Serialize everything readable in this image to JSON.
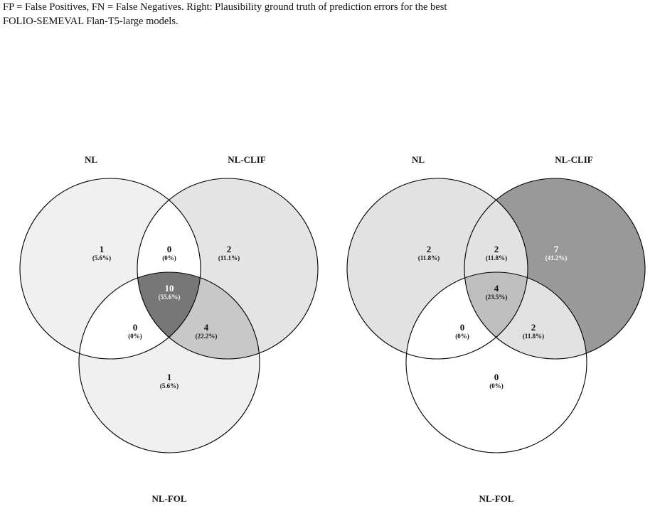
{
  "caption": [
    "FP = False Positives, FN = False Negatives.  Right: Plausibility ground truth of prediction errors for the best",
    "FOLIO-SEMEVAL Flan-T5-large models."
  ],
  "venns": [
    {
      "sets": [
        "NL",
        "NL-CLIF",
        "NL-FOL"
      ],
      "regions": [
        {
          "count": 1,
          "percent": "(5.6%)",
          "color": "#f0f0f0"
        },
        {
          "count": 0,
          "percent": "(0%)",
          "color": "#ffffff"
        },
        {
          "count": 2,
          "percent": "(11.1%)",
          "color": "#e4e4e4"
        },
        {
          "count": 0,
          "percent": "(0%)",
          "color": "#ffffff"
        },
        {
          "count": 10,
          "percent": "(55.6%)",
          "color": "#777777"
        },
        {
          "count": 4,
          "percent": "(22.2%)",
          "color": "#c8c8c8"
        },
        {
          "count": 1,
          "percent": "(5.6%)",
          "color": "#f0f0f0"
        }
      ]
    },
    {
      "sets": [
        "NL",
        "NL-CLIF",
        "NL-FOL"
      ],
      "regions": [
        {
          "count": 2,
          "percent": "(11.8%)",
          "color": "#e2e2e2"
        },
        {
          "count": 2,
          "percent": "(11.8%)",
          "color": "#e2e2e2"
        },
        {
          "count": 7,
          "percent": "(41.2%)",
          "color": "#999999"
        },
        {
          "count": 0,
          "percent": "(0%)",
          "color": "#ffffff"
        },
        {
          "count": 4,
          "percent": "(23.5%)",
          "color": "#bfbfbf"
        },
        {
          "count": 2,
          "percent": "(11.8%)",
          "color": "#e2e2e2"
        },
        {
          "count": 0,
          "percent": "(0%)",
          "color": "#ffffff"
        }
      ]
    }
  ]
}
